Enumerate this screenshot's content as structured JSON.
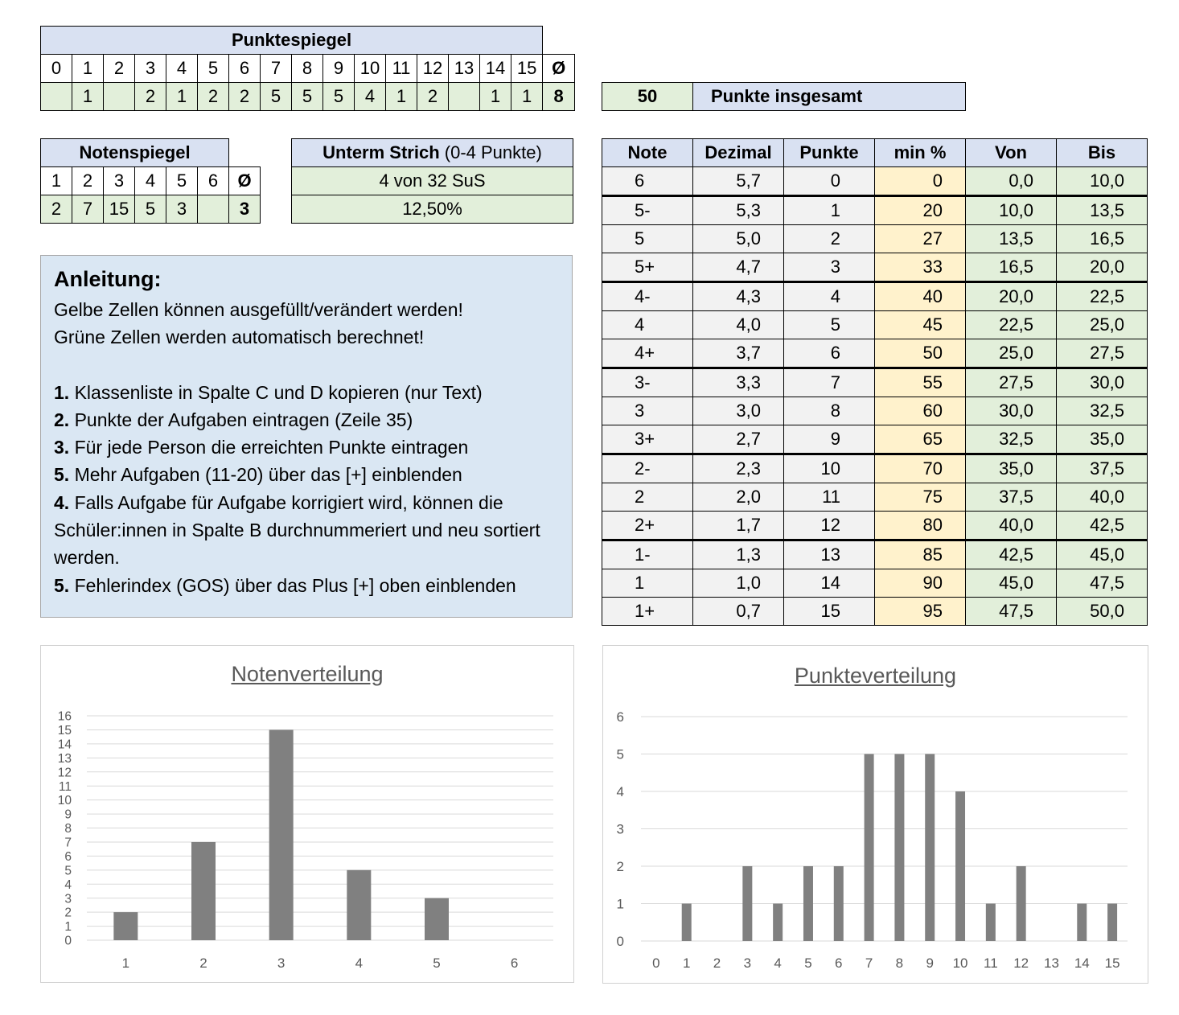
{
  "punktespiegel": {
    "title": "Punktespiegel",
    "header": [
      "0",
      "1",
      "2",
      "3",
      "4",
      "5",
      "6",
      "7",
      "8",
      "9",
      "10",
      "11",
      "12",
      "13",
      "14",
      "15",
      "Ø"
    ],
    "values": [
      "",
      "1",
      "",
      "2",
      "1",
      "2",
      "2",
      "5",
      "5",
      "5",
      "4",
      "1",
      "2",
      "",
      "1",
      "1",
      "8"
    ]
  },
  "total": {
    "value": "50",
    "label": "Punkte insgesamt"
  },
  "notenspiegel": {
    "title": "Notenspiegel",
    "header": [
      "1",
      "2",
      "3",
      "4",
      "5",
      "6",
      "Ø"
    ],
    "values": [
      "2",
      "7",
      "15",
      "5",
      "3",
      "",
      "3"
    ]
  },
  "unterm_strich": {
    "title_bold": "Unterm Strich",
    "title_rest": " (0-4 Punkte)",
    "line1": "4 von 32 SuS",
    "line2": "12,50%"
  },
  "grade_table": {
    "headers": [
      "Note",
      "Dezimal",
      "Punkte",
      "min %",
      "Von",
      "Bis"
    ],
    "rows": [
      [
        "6",
        "5,7",
        "0",
        "0",
        "0,0",
        "10,0"
      ],
      [
        "5-",
        "5,3",
        "1",
        "20",
        "10,0",
        "13,5"
      ],
      [
        "5",
        "5,0",
        "2",
        "27",
        "13,5",
        "16,5"
      ],
      [
        "5+",
        "4,7",
        "3",
        "33",
        "16,5",
        "20,0"
      ],
      [
        "4-",
        "4,3",
        "4",
        "40",
        "20,0",
        "22,5"
      ],
      [
        "4",
        "4,0",
        "5",
        "45",
        "22,5",
        "25,0"
      ],
      [
        "4+",
        "3,7",
        "6",
        "50",
        "25,0",
        "27,5"
      ],
      [
        "3-",
        "3,3",
        "7",
        "55",
        "27,5",
        "30,0"
      ],
      [
        "3",
        "3,0",
        "8",
        "60",
        "30,0",
        "32,5"
      ],
      [
        "3+",
        "2,7",
        "9",
        "65",
        "32,5",
        "35,0"
      ],
      [
        "2-",
        "2,3",
        "10",
        "70",
        "35,0",
        "37,5"
      ],
      [
        "2",
        "2,0",
        "11",
        "75",
        "37,5",
        "40,0"
      ],
      [
        "2+",
        "1,7",
        "12",
        "80",
        "40,0",
        "42,5"
      ],
      [
        "1-",
        "1,3",
        "13",
        "85",
        "42,5",
        "45,0"
      ],
      [
        "1",
        "1,0",
        "14",
        "90",
        "45,0",
        "47,5"
      ],
      [
        "1+",
        "0,7",
        "15",
        "95",
        "47,5",
        "50,0"
      ]
    ]
  },
  "anleitung": {
    "title": "Anleitung:",
    "intro1": "Gelbe Zellen können ausgefüllt/verändert werden!",
    "intro2": "Grüne Zellen werden automatisch berechnet!",
    "steps": [
      {
        "num": "1.",
        "text": " Klassenliste in Spalte C und D kopieren (nur Text)"
      },
      {
        "num": "2.",
        "text": " Punkte der Aufgaben eintragen (Zeile 35)"
      },
      {
        "num": "3.",
        "text": " Für jede Person die erreichten Punkte eintragen"
      },
      {
        "num": "5.",
        "text": " Mehr Aufgaben (11-20) über das [+] einblenden"
      },
      {
        "num": "4.",
        "text": " Falls Aufgabe für Aufgabe korrigiert wird, können die Schüler:innen in Spalte B durchnummeriert und neu sortiert werden."
      },
      {
        "num": "5.",
        "text": " Fehlerindex (GOS) über das Plus [+] oben einblenden"
      }
    ]
  },
  "colors": {
    "header_blue": "#d9e1f2",
    "green": "#e2efda",
    "yellow": "#fff2cc",
    "gray": "#f2f2f2",
    "anleitung_bg": "#dae7f3",
    "bar": "#808080"
  },
  "chart_data": [
    {
      "type": "bar",
      "title": "Notenverteilung",
      "categories": [
        "1",
        "2",
        "3",
        "4",
        "5",
        "6"
      ],
      "values": [
        2,
        7,
        15,
        5,
        3,
        0
      ],
      "ylim": [
        0,
        16
      ],
      "yticks": [
        0,
        1,
        2,
        3,
        4,
        5,
        6,
        7,
        8,
        9,
        10,
        11,
        12,
        13,
        14,
        15,
        16
      ],
      "grid": true
    },
    {
      "type": "bar",
      "title": "Punkteverteilung",
      "categories": [
        "0",
        "1",
        "2",
        "3",
        "4",
        "5",
        "6",
        "7",
        "8",
        "9",
        "10",
        "11",
        "12",
        "13",
        "14",
        "15"
      ],
      "values": [
        0,
        1,
        0,
        2,
        1,
        2,
        2,
        5,
        5,
        5,
        4,
        1,
        2,
        0,
        1,
        1
      ],
      "ylim": [
        0,
        6
      ],
      "yticks": [
        0,
        1,
        2,
        3,
        4,
        5,
        6
      ],
      "grid": true
    }
  ]
}
